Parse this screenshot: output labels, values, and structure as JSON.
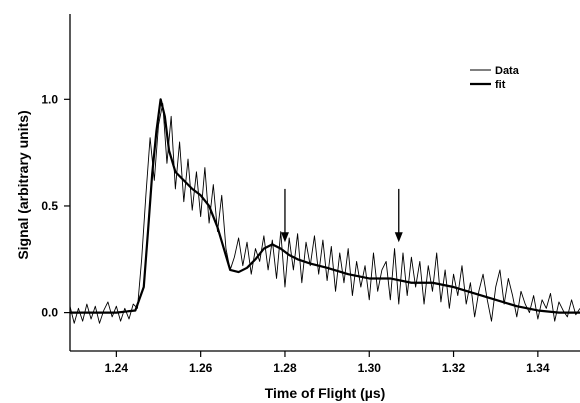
{
  "chart_data": {
    "type": "line",
    "xlabel": "Time of Flight (µs)",
    "ylabel": "Signal (arbitrary units)",
    "xlim": [
      1.229,
      1.35
    ],
    "ylim": [
      -0.18,
      1.4
    ],
    "xticks": [
      1.24,
      1.26,
      1.28,
      1.3,
      1.32,
      1.34
    ],
    "xtick_labels": [
      "1.24",
      "1.26",
      "1.28",
      "1.30",
      "1.32",
      "1.34"
    ],
    "yticks": [
      0.0,
      0.5,
      1.0
    ],
    "ytick_labels": [
      "0.0",
      "0.5",
      "1.0"
    ],
    "grid": false,
    "legend_position": "top-right",
    "series": [
      {
        "name": "Data",
        "style": "thin",
        "x": [
          1.229,
          1.23,
          1.231,
          1.232,
          1.233,
          1.234,
          1.235,
          1.236,
          1.237,
          1.238,
          1.239,
          1.24,
          1.241,
          1.242,
          1.243,
          1.244,
          1.245,
          1.246,
          1.247,
          1.248,
          1.249,
          1.25,
          1.251,
          1.252,
          1.253,
          1.254,
          1.255,
          1.256,
          1.257,
          1.258,
          1.259,
          1.26,
          1.261,
          1.262,
          1.263,
          1.264,
          1.265,
          1.266,
          1.267,
          1.268,
          1.269,
          1.27,
          1.271,
          1.272,
          1.273,
          1.274,
          1.275,
          1.276,
          1.277,
          1.278,
          1.279,
          1.28,
          1.281,
          1.282,
          1.283,
          1.284,
          1.285,
          1.286,
          1.287,
          1.288,
          1.289,
          1.29,
          1.291,
          1.292,
          1.293,
          1.294,
          1.295,
          1.296,
          1.297,
          1.298,
          1.299,
          1.3,
          1.301,
          1.302,
          1.303,
          1.304,
          1.305,
          1.306,
          1.307,
          1.308,
          1.309,
          1.31,
          1.311,
          1.312,
          1.313,
          1.314,
          1.315,
          1.316,
          1.317,
          1.318,
          1.319,
          1.32,
          1.321,
          1.322,
          1.323,
          1.324,
          1.325,
          1.326,
          1.327,
          1.328,
          1.329,
          1.33,
          1.331,
          1.332,
          1.333,
          1.334,
          1.335,
          1.336,
          1.337,
          1.338,
          1.339,
          1.34,
          1.341,
          1.342,
          1.343,
          1.344,
          1.345,
          1.346,
          1.347,
          1.348,
          1.349,
          1.35
        ],
        "y": [
          0.03,
          -0.05,
          0.02,
          -0.04,
          0.04,
          -0.03,
          0.03,
          -0.05,
          0.01,
          0.05,
          -0.02,
          0.03,
          -0.04,
          0.02,
          -0.03,
          0.04,
          0.02,
          0.25,
          0.55,
          0.82,
          0.62,
          0.88,
          0.98,
          0.7,
          0.92,
          0.58,
          0.8,
          0.52,
          0.72,
          0.48,
          0.66,
          0.45,
          0.68,
          0.42,
          0.6,
          0.38,
          0.55,
          0.3,
          0.2,
          0.26,
          0.35,
          0.22,
          0.33,
          0.18,
          0.3,
          0.24,
          0.36,
          0.2,
          0.34,
          0.16,
          0.38,
          0.12,
          0.35,
          0.2,
          0.37,
          0.14,
          0.33,
          0.22,
          0.36,
          0.18,
          0.34,
          0.15,
          0.31,
          0.1,
          0.28,
          0.14,
          0.3,
          0.08,
          0.24,
          0.12,
          0.22,
          0.06,
          0.28,
          0.1,
          0.2,
          0.24,
          0.06,
          0.3,
          0.04,
          0.28,
          0.08,
          0.26,
          0.12,
          0.24,
          0.04,
          0.22,
          0.1,
          0.28,
          0.05,
          0.2,
          0.02,
          0.18,
          0.08,
          0.22,
          0.04,
          0.14,
          -0.02,
          0.1,
          0.18,
          0.06,
          -0.04,
          0.12,
          0.2,
          0.04,
          0.16,
          0.08,
          -0.02,
          0.1,
          0.04,
          0.0,
          0.08,
          -0.03,
          0.06,
          0.02,
          0.09,
          -0.04,
          0.05,
          0.01,
          -0.02,
          0.06,
          -0.01,
          0.02
        ]
      },
      {
        "name": "fit",
        "style": "thick",
        "x": [
          1.229,
          1.24,
          1.2445,
          1.2465,
          1.2475,
          1.2485,
          1.2495,
          1.2505,
          1.2515,
          1.2525,
          1.254,
          1.256,
          1.258,
          1.26,
          1.262,
          1.264,
          1.2655,
          1.267,
          1.269,
          1.271,
          1.273,
          1.275,
          1.277,
          1.279,
          1.281,
          1.283,
          1.286,
          1.29,
          1.295,
          1.3,
          1.305,
          1.31,
          1.315,
          1.32,
          1.325,
          1.33,
          1.335,
          1.34,
          1.345,
          1.35
        ],
        "y": [
          0.0,
          0.0,
          0.01,
          0.12,
          0.38,
          0.65,
          0.85,
          1.0,
          0.92,
          0.76,
          0.66,
          0.62,
          0.58,
          0.55,
          0.5,
          0.4,
          0.3,
          0.2,
          0.19,
          0.21,
          0.25,
          0.3,
          0.32,
          0.3,
          0.27,
          0.25,
          0.23,
          0.21,
          0.18,
          0.16,
          0.16,
          0.14,
          0.14,
          0.12,
          0.09,
          0.06,
          0.03,
          0.01,
          0.0,
          0.0
        ]
      }
    ],
    "annotations": [
      {
        "type": "arrow",
        "x": 1.28,
        "y_from": 0.58,
        "y_to": 0.33
      },
      {
        "type": "arrow",
        "x": 1.307,
        "y_from": 0.58,
        "y_to": 0.33
      }
    ]
  }
}
